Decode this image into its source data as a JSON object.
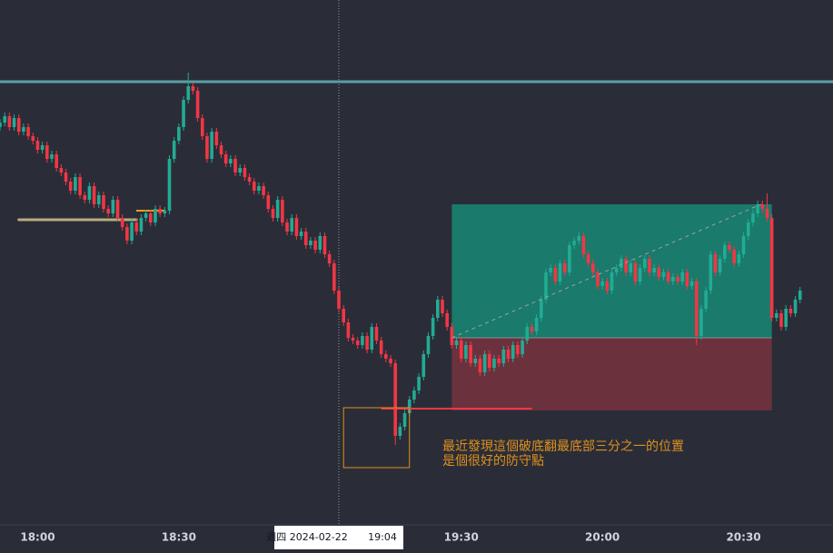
{
  "chart_data": {
    "type": "candlestick",
    "xlim": [
      1072,
      1249
    ],
    "ylim": [
      0,
      577
    ],
    "xticks": [
      {
        "value": 1080,
        "label": "18:00"
      },
      {
        "value": 1110,
        "label": "18:30"
      },
      {
        "value": 1170,
        "label": "19:30"
      },
      {
        "value": 1200,
        "label": "20:00"
      },
      {
        "value": 1230,
        "label": "20:30"
      }
    ],
    "up_color": "#22ab94",
    "down_color": "#f23645",
    "x": [
      1072,
      1073,
      1074,
      1075,
      1076,
      1077,
      1078,
      1079,
      1080,
      1081,
      1082,
      1083,
      1084,
      1085,
      1086,
      1087,
      1088,
      1089,
      1090,
      1091,
      1092,
      1093,
      1094,
      1095,
      1096,
      1097,
      1098,
      1099,
      1100,
      1101,
      1102,
      1103,
      1104,
      1105,
      1106,
      1107,
      1108,
      1109,
      1110,
      1111,
      1112,
      1113,
      1114,
      1115,
      1116,
      1117,
      1118,
      1119,
      1120,
      1121,
      1122,
      1123,
      1124,
      1125,
      1126,
      1127,
      1128,
      1129,
      1130,
      1131,
      1132,
      1133,
      1134,
      1135,
      1136,
      1137,
      1138,
      1139,
      1140,
      1141,
      1142,
      1143,
      1144,
      1145,
      1146,
      1147,
      1148,
      1149,
      1150,
      1151,
      1152,
      1153,
      1154,
      1155,
      1156,
      1157,
      1158,
      1159,
      1160,
      1161,
      1162,
      1163,
      1164,
      1165,
      1166,
      1167,
      1168,
      1169,
      1170,
      1171,
      1172,
      1173,
      1174,
      1175,
      1176,
      1177,
      1178,
      1179,
      1180,
      1181,
      1182,
      1183,
      1184,
      1185,
      1186,
      1187,
      1188,
      1189,
      1190,
      1191,
      1192,
      1193,
      1194,
      1195,
      1196,
      1197,
      1198,
      1199,
      1200,
      1201,
      1202,
      1203,
      1204,
      1205,
      1206,
      1207,
      1208,
      1209,
      1210,
      1211,
      1212,
      1213,
      1214,
      1215,
      1216,
      1217,
      1218,
      1219,
      1220,
      1221,
      1222,
      1223,
      1224,
      1225,
      1226,
      1227,
      1228,
      1229,
      1230,
      1231,
      1232,
      1233,
      1234,
      1235,
      1236,
      1237,
      1238,
      1239,
      1240,
      1241,
      1242
    ],
    "open": [
      437,
      442,
      449,
      437,
      447,
      432,
      437,
      427,
      422,
      412,
      417,
      402,
      407,
      392,
      387,
      377,
      367,
      382,
      362,
      357,
      372,
      352,
      362,
      347,
      342,
      357,
      337,
      327,
      312,
      332,
      322,
      337,
      342,
      332,
      347,
      342,
      345,
      402,
      422,
      437,
      467,
      482,
      477,
      447,
      427,
      402,
      432,
      417,
      407,
      397,
      402,
      387,
      392,
      382,
      377,
      367,
      372,
      362,
      347,
      337,
      357,
      332,
      322,
      337,
      317,
      322,
      307,
      312,
      302,
      317,
      297,
      287,
      257,
      237,
      222,
      205,
      202,
      197,
      207,
      192,
      217,
      202,
      187,
      182,
      177,
      97,
      107,
      122,
      137,
      147,
      162,
      187,
      207,
      227,
      247,
      232,
      217,
      197,
      202,
      182,
      197,
      177,
      182,
      167,
      187,
      172,
      182,
      177,
      192,
      182,
      197,
      187,
      202,
      217,
      212,
      227,
      247,
      277,
      282,
      267,
      287,
      277,
      307,
      312,
      317,
      297,
      287,
      277,
      262,
      267,
      257,
      277,
      282,
      292,
      277,
      287,
      267,
      282,
      292,
      277,
      282,
      272,
      277,
      267,
      272,
      267,
      277,
      262,
      267,
      207,
      237,
      257,
      297,
      277,
      292,
      307,
      302,
      287,
      297,
      317,
      332,
      342,
      352,
      347,
      337,
      227,
      232,
      217,
      237,
      232,
      247
    ],
    "high": [
      446,
      453,
      453,
      451,
      451,
      441,
      441,
      431,
      426,
      421,
      421,
      411,
      411,
      396,
      391,
      381,
      386,
      386,
      366,
      376,
      376,
      366,
      366,
      351,
      361,
      361,
      341,
      331,
      336,
      336,
      341,
      346,
      346,
      351,
      351,
      349,
      406,
      426,
      441,
      471,
      497,
      486,
      481,
      451,
      431,
      436,
      436,
      421,
      411,
      406,
      406,
      396,
      396,
      386,
      381,
      376,
      376,
      366,
      351,
      361,
      361,
      336,
      341,
      341,
      326,
      326,
      316,
      316,
      321,
      321,
      301,
      291,
      261,
      241,
      226,
      209,
      206,
      211,
      211,
      221,
      221,
      206,
      191,
      186,
      181,
      111,
      126,
      141,
      151,
      166,
      191,
      211,
      231,
      251,
      251,
      236,
      221,
      206,
      206,
      201,
      201,
      186,
      186,
      191,
      191,
      186,
      186,
      196,
      196,
      201,
      201,
      206,
      221,
      221,
      231,
      251,
      281,
      286,
      286,
      291,
      291,
      311,
      316,
      321,
      321,
      301,
      291,
      281,
      271,
      271,
      281,
      286,
      296,
      296,
      291,
      291,
      286,
      296,
      296,
      286,
      286,
      281,
      281,
      276,
      276,
      281,
      281,
      271,
      271,
      241,
      261,
      301,
      301,
      296,
      311,
      311,
      306,
      301,
      321,
      336,
      346,
      356,
      356,
      364,
      341,
      236,
      236,
      241,
      241,
      251,
      261
    ],
    "low": [
      433,
      438,
      433,
      433,
      428,
      428,
      423,
      418,
      408,
      408,
      398,
      398,
      388,
      383,
      373,
      363,
      363,
      358,
      353,
      353,
      348,
      348,
      343,
      338,
      338,
      333,
      323,
      308,
      308,
      318,
      318,
      333,
      328,
      328,
      338,
      338,
      341,
      398,
      418,
      433,
      463,
      473,
      443,
      423,
      398,
      398,
      413,
      403,
      393,
      393,
      383,
      383,
      378,
      373,
      363,
      363,
      358,
      343,
      333,
      333,
      328,
      318,
      318,
      313,
      313,
      303,
      303,
      298,
      298,
      293,
      283,
      253,
      233,
      218,
      201,
      198,
      193,
      193,
      188,
      188,
      198,
      183,
      178,
      173,
      87,
      93,
      103,
      118,
      133,
      143,
      158,
      183,
      203,
      223,
      228,
      213,
      193,
      193,
      178,
      178,
      173,
      173,
      163,
      163,
      168,
      168,
      173,
      173,
      178,
      178,
      183,
      183,
      198,
      208,
      208,
      223,
      243,
      273,
      263,
      263,
      273,
      273,
      303,
      308,
      293,
      283,
      273,
      258,
      258,
      253,
      253,
      273,
      278,
      273,
      273,
      263,
      263,
      278,
      273,
      273,
      268,
      268,
      263,
      263,
      263,
      263,
      258,
      258,
      197,
      203,
      233,
      253,
      273,
      273,
      288,
      298,
      283,
      283,
      293,
      313,
      328,
      338,
      343,
      333,
      223,
      223,
      213,
      213,
      228,
      228,
      243
    ],
    "close": [
      442,
      449,
      437,
      447,
      432,
      437,
      427,
      422,
      412,
      417,
      402,
      407,
      392,
      387,
      377,
      367,
      382,
      362,
      357,
      372,
      352,
      362,
      347,
      342,
      357,
      337,
      327,
      312,
      332,
      322,
      337,
      342,
      332,
      347,
      342,
      345,
      402,
      422,
      437,
      467,
      482,
      477,
      447,
      427,
      402,
      432,
      417,
      407,
      397,
      402,
      387,
      392,
      382,
      377,
      367,
      372,
      362,
      347,
      337,
      357,
      332,
      322,
      337,
      317,
      322,
      307,
      312,
      302,
      317,
      297,
      287,
      257,
      237,
      222,
      205,
      202,
      197,
      207,
      192,
      217,
      202,
      187,
      182,
      177,
      97,
      107,
      122,
      137,
      147,
      162,
      187,
      207,
      227,
      247,
      232,
      217,
      197,
      202,
      182,
      197,
      177,
      182,
      167,
      187,
      172,
      182,
      177,
      192,
      182,
      197,
      187,
      202,
      217,
      212,
      227,
      247,
      277,
      282,
      267,
      287,
      277,
      307,
      312,
      317,
      297,
      287,
      277,
      262,
      267,
      257,
      277,
      282,
      292,
      277,
      287,
      267,
      282,
      292,
      277,
      282,
      272,
      277,
      267,
      272,
      267,
      277,
      262,
      267,
      207,
      237,
      257,
      297,
      277,
      292,
      307,
      302,
      287,
      297,
      317,
      332,
      342,
      352,
      347,
      337,
      227,
      232,
      217,
      237,
      232,
      247,
      257
    ],
    "level": {
      "value": 487,
      "color": "#5b9ea6"
    },
    "support": {
      "x": [
        1076,
        1101
      ],
      "value": 335,
      "color": "#b8ab7f"
    },
    "position": {
      "x": [
        1168,
        1236
      ],
      "target": 352,
      "entry": 205,
      "stop": 125,
      "profit_color": "#1a7a6b",
      "loss_color": "#6b323d"
    },
    "stop_line": {
      "x": [
        1153,
        1185
      ],
      "value": 127,
      "color": "#f23645"
    },
    "box": {
      "x": [
        1145,
        1159
      ],
      "y": [
        62,
        128
      ],
      "color": "#e0901c"
    },
    "annotation": {
      "lines": [
        "最近發現這個破底翻最底部三分之一的位置",
        "是個很好的防守點"
      ],
      "color": "#e0901c"
    },
    "crosshair": {
      "x": 1144,
      "date_label": "週四 2024-02-22",
      "time_label": "19:04"
    }
  }
}
